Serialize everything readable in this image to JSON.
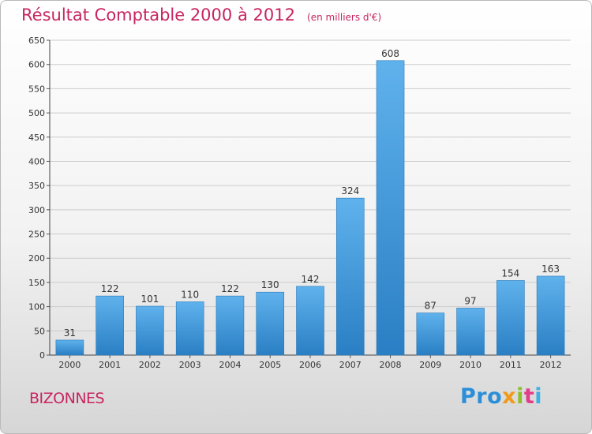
{
  "title": "Résultat Comptable 2000 à 2012",
  "unit_label": "(en milliers d'€)",
  "city": "BIZONNES",
  "logo": {
    "p1": "Pro",
    "p2": "x",
    "p3": "i",
    "p4": "t",
    "p5": "i"
  },
  "colors": {
    "title": "#c8245f",
    "bar_top": "#5fb2ec",
    "bar_bottom": "#2a7fc4",
    "grid": "#cccccc"
  },
  "chart_data": {
    "type": "bar",
    "title": "Résultat Comptable 2000 à 2012",
    "subtitle": "(en milliers d'€)",
    "categories": [
      "2000",
      "2001",
      "2002",
      "2003",
      "2004",
      "2005",
      "2006",
      "2007",
      "2008",
      "2009",
      "2010",
      "2011",
      "2012"
    ],
    "values": [
      31,
      122,
      101,
      110,
      122,
      130,
      142,
      324,
      608,
      87,
      97,
      154,
      163
    ],
    "xlabel": "",
    "ylabel": "",
    "ylim": [
      0,
      650
    ],
    "yticks": [
      0,
      50,
      100,
      150,
      200,
      250,
      300,
      350,
      400,
      450,
      500,
      550,
      600,
      650
    ],
    "grid": true,
    "legend": "none"
  }
}
